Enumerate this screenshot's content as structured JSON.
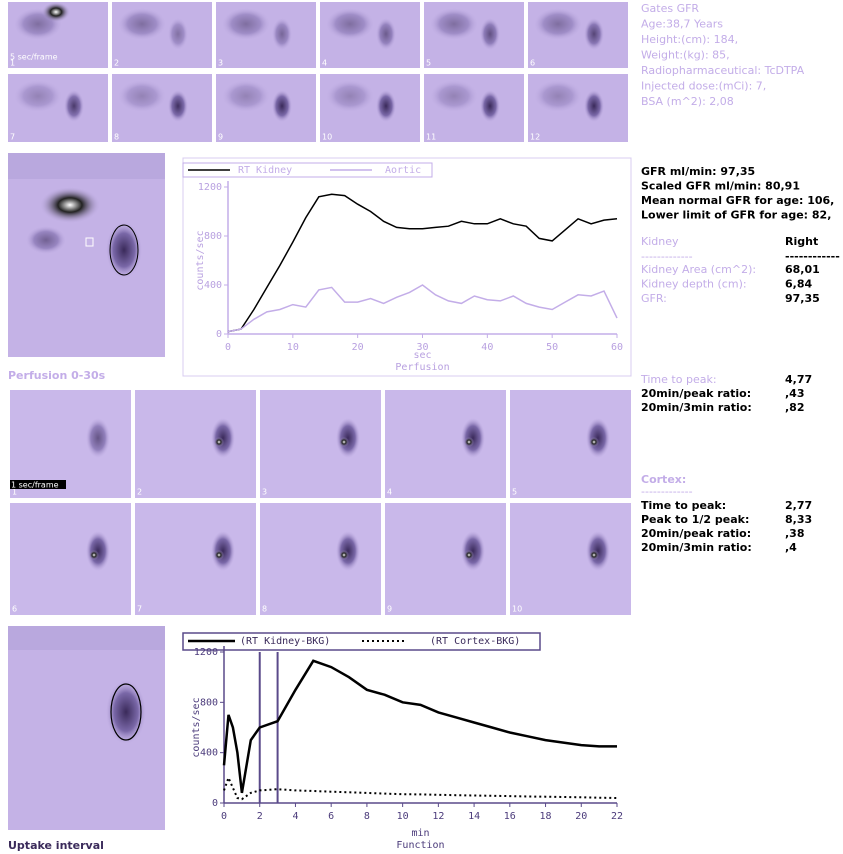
{
  "header": {
    "lines": [
      "Gates GFR",
      "Age:38,7 Years",
      "Height:(cm): 184,",
      "Weight:(kg): 85,",
      "Radiopharmaceutical:  TcDTPA",
      "Injected dose:(mCi): 7,",
      "BSA (m^2): 2,08"
    ]
  },
  "frames": {
    "top": {
      "note": "5 sec/frame",
      "numbers": [
        "1",
        "2",
        "3",
        "4",
        "5",
        "6",
        "7",
        "8",
        "9",
        "10",
        "11",
        "12"
      ]
    },
    "perfusion": {
      "note": "1 sec/frame",
      "numbers": [
        "1",
        "2",
        "3",
        "4",
        "5",
        "6",
        "7",
        "8",
        "9",
        "10"
      ]
    }
  },
  "gfr": {
    "lines": [
      "GFR ml/min: 97,35",
      "Scaled GFR ml/min: 80,91",
      "Mean normal GFR for age: 106,",
      "Lower limit of GFR for age: 82,"
    ]
  },
  "kidney_table": {
    "header": [
      "Kidney",
      "Right"
    ],
    "rule": [
      "-------------",
      "------------"
    ],
    "rows": [
      [
        "Kidney Area (cm^2):",
        "68,01"
      ],
      [
        "Kidney depth (cm):",
        "6,84"
      ],
      [
        "GFR:",
        "97,35"
      ]
    ]
  },
  "perfusion_stats": {
    "rows": [
      [
        "Time to peak:",
        "4,77"
      ],
      [
        "20min/peak ratio:",
        ",43"
      ],
      [
        "20min/3min ratio:",
        ",82"
      ]
    ]
  },
  "cortex": {
    "title": "Cortex:",
    "rule": "-------------",
    "rows": [
      [
        "Time to peak:",
        "2,77"
      ],
      [
        "Peak to 1/2 peak:",
        "8,33"
      ],
      [
        "20min/peak ratio:",
        ",38"
      ],
      [
        "20min/3min ratio:",
        ",4"
      ]
    ]
  },
  "labels": {
    "perfusion": "Perfusion 0-30s",
    "uptake": "Uptake interval"
  },
  "chart_data": [
    {
      "type": "line",
      "title": "Perfusion",
      "x_label": "sec",
      "y_label": "counts/sec",
      "x": [
        0,
        2,
        4,
        6,
        8,
        10,
        12,
        14,
        16,
        18,
        20,
        22,
        24,
        26,
        28,
        30,
        32,
        34,
        36,
        38,
        40,
        42,
        44,
        46,
        48,
        50,
        52,
        54,
        56,
        58,
        60
      ],
      "series": [
        {
          "name": "RT Kidney",
          "color": "#000000",
          "style": "solid",
          "values": [
            20,
            40,
            200,
            380,
            560,
            750,
            950,
            1120,
            1140,
            1130,
            1060,
            1000,
            920,
            870,
            860,
            860,
            870,
            880,
            920,
            900,
            900,
            940,
            900,
            880,
            780,
            760,
            850,
            940,
            900,
            930,
            940
          ]
        },
        {
          "name": "Aortic",
          "color": "#c3ade8",
          "style": "solid",
          "values": [
            20,
            40,
            120,
            180,
            200,
            240,
            220,
            360,
            380,
            260,
            260,
            290,
            250,
            300,
            340,
            400,
            320,
            270,
            250,
            310,
            280,
            270,
            310,
            250,
            220,
            200,
            260,
            320,
            310,
            350,
            130
          ]
        }
      ],
      "xlim": [
        0,
        60
      ],
      "xticks": [
        0,
        10,
        20,
        30,
        40,
        50,
        60
      ],
      "ylim": [
        0,
        1200
      ],
      "yticks": [
        0,
        400,
        800,
        1200
      ]
    },
    {
      "type": "line",
      "title": "Function",
      "x_label": "min",
      "y_label": "counts/sec",
      "x": [
        0,
        0.25,
        0.5,
        0.75,
        1,
        1.5,
        2,
        3,
        4,
        5,
        6,
        7,
        8,
        9,
        10,
        11,
        12,
        13,
        14,
        15,
        16,
        17,
        18,
        19,
        20,
        21,
        22
      ],
      "series": [
        {
          "name": "(RT Kidney-BKG)",
          "color": "#000000",
          "style": "solid",
          "values": [
            300,
            700,
            600,
            400,
            80,
            500,
            600,
            650,
            900,
            1130,
            1080,
            1000,
            900,
            860,
            800,
            780,
            720,
            680,
            640,
            600,
            560,
            530,
            500,
            480,
            460,
            450,
            450
          ]
        },
        {
          "name": "(RT Cortex-BKG)",
          "color": "#000000",
          "style": "dotted",
          "values": [
            100,
            200,
            120,
            40,
            30,
            80,
            100,
            110,
            100,
            95,
            90,
            85,
            80,
            75,
            70,
            68,
            65,
            62,
            60,
            57,
            55,
            52,
            50,
            48,
            45,
            42,
            40
          ]
        }
      ],
      "interval": [
        2,
        3
      ],
      "xlim": [
        0,
        22
      ],
      "xticks": [
        0,
        2,
        4,
        6,
        8,
        10,
        12,
        14,
        16,
        18,
        20,
        22
      ],
      "ylim": [
        0,
        1200
      ],
      "yticks": [
        0,
        400,
        800,
        1200
      ]
    }
  ]
}
